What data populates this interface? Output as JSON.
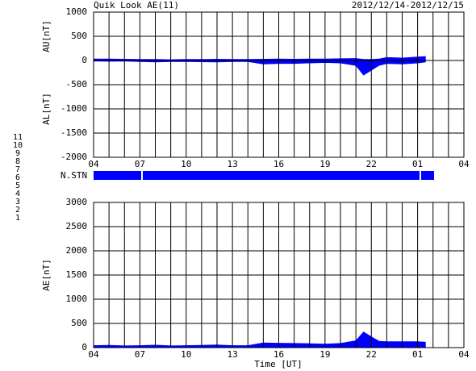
{
  "chart_data": [
    {
      "type": "area",
      "title": "Quik Look AE(11)",
      "date_range": "2012/12/14-2012/12/15",
      "ylabel_upper": "AU[nT]",
      "ylabel_lower": "AL[nT]",
      "x": [
        4,
        5,
        6,
        7,
        8,
        9,
        10,
        11,
        12,
        13,
        14,
        15,
        16,
        17,
        18,
        19,
        20,
        21,
        21.5,
        22,
        22.5,
        23,
        24,
        25,
        25.5
      ],
      "series": [
        {
          "color": "#0000ff",
          "values": [
            30,
            30,
            25,
            20,
            20,
            15,
            20,
            20,
            25,
            20,
            20,
            25,
            30,
            25,
            30,
            30,
            35,
            40,
            20,
            20,
            30,
            60,
            50,
            70,
            80
          ]
        },
        {
          "color": "#0000ff",
          "values": [
            -10,
            -15,
            -10,
            -20,
            -30,
            -20,
            -20,
            -25,
            -30,
            -20,
            -20,
            -70,
            -60,
            -60,
            -50,
            -40,
            -50,
            -100,
            -300,
            -200,
            -100,
            -60,
            -70,
            -50,
            -30
          ]
        }
      ],
      "xlim": [
        4,
        28
      ],
      "xticks": [
        {
          "value": 4,
          "label": "04"
        },
        {
          "value": 7,
          "label": "07"
        },
        10,
        13,
        16,
        19,
        22,
        {
          "value": 25,
          "label": "01"
        },
        {
          "value": 28,
          "label": "04"
        }
      ],
      "xgrid": [
        5,
        6,
        8,
        9,
        11,
        12,
        14,
        15,
        17,
        18,
        20,
        21,
        23,
        24,
        26,
        27
      ],
      "ylim": [
        -2000,
        1000
      ],
      "yticks": [
        -2000,
        -1500,
        -1000,
        -500,
        0,
        500,
        1000
      ],
      "grid": true
    },
    {
      "type": "area",
      "ylabel": "AE[nT]",
      "xlabel": "Time [UT]",
      "x": [
        4,
        5,
        6,
        7,
        8,
        9,
        10,
        11,
        12,
        13,
        14,
        15,
        16,
        17,
        18,
        19,
        20,
        21,
        21.5,
        22,
        22.5,
        23,
        24,
        25,
        25.5
      ],
      "series": [
        {
          "color": "#0000ff",
          "values": [
            40,
            45,
            35,
            40,
            50,
            35,
            40,
            45,
            55,
            40,
            40,
            95,
            90,
            85,
            80,
            70,
            85,
            140,
            320,
            220,
            130,
            120,
            120,
            120,
            110
          ]
        }
      ],
      "xlim": [
        4,
        28
      ],
      "xticks": [
        {
          "value": 4,
          "label": "04"
        },
        {
          "value": 7,
          "label": "07"
        },
        10,
        13,
        16,
        19,
        22,
        {
          "value": 25,
          "label": "01"
        },
        {
          "value": 28,
          "label": "04"
        }
      ],
      "xgrid": [
        5,
        6,
        8,
        9,
        11,
        12,
        14,
        15,
        17,
        18,
        20,
        21,
        23,
        24,
        26,
        27
      ],
      "ylim": [
        0,
        3000
      ],
      "yticks": [
        0,
        500,
        1000,
        1500,
        2000,
        2500,
        3000
      ],
      "grid": true
    }
  ],
  "station_bar": {
    "label": "N.STN"
  },
  "station_legend": [
    {
      "label": "11",
      "color": "#00e0e0"
    },
    {
      "label": "10",
      "color": "#ff00ff"
    },
    {
      "label": "9",
      "color": "#4040c0"
    },
    {
      "label": "8",
      "color": "#ffd000"
    },
    {
      "label": "7",
      "color": "#c0e060"
    },
    {
      "label": "6",
      "color": "#ff0000"
    },
    {
      "label": "5",
      "color": "#e0e0e0"
    },
    {
      "label": "4",
      "color": "#a0a0a0"
    },
    {
      "label": "3",
      "color": "#20a0a0"
    },
    {
      "label": "2",
      "color": "#a020a0"
    },
    {
      "label": "1",
      "color": "#2020c0"
    }
  ]
}
